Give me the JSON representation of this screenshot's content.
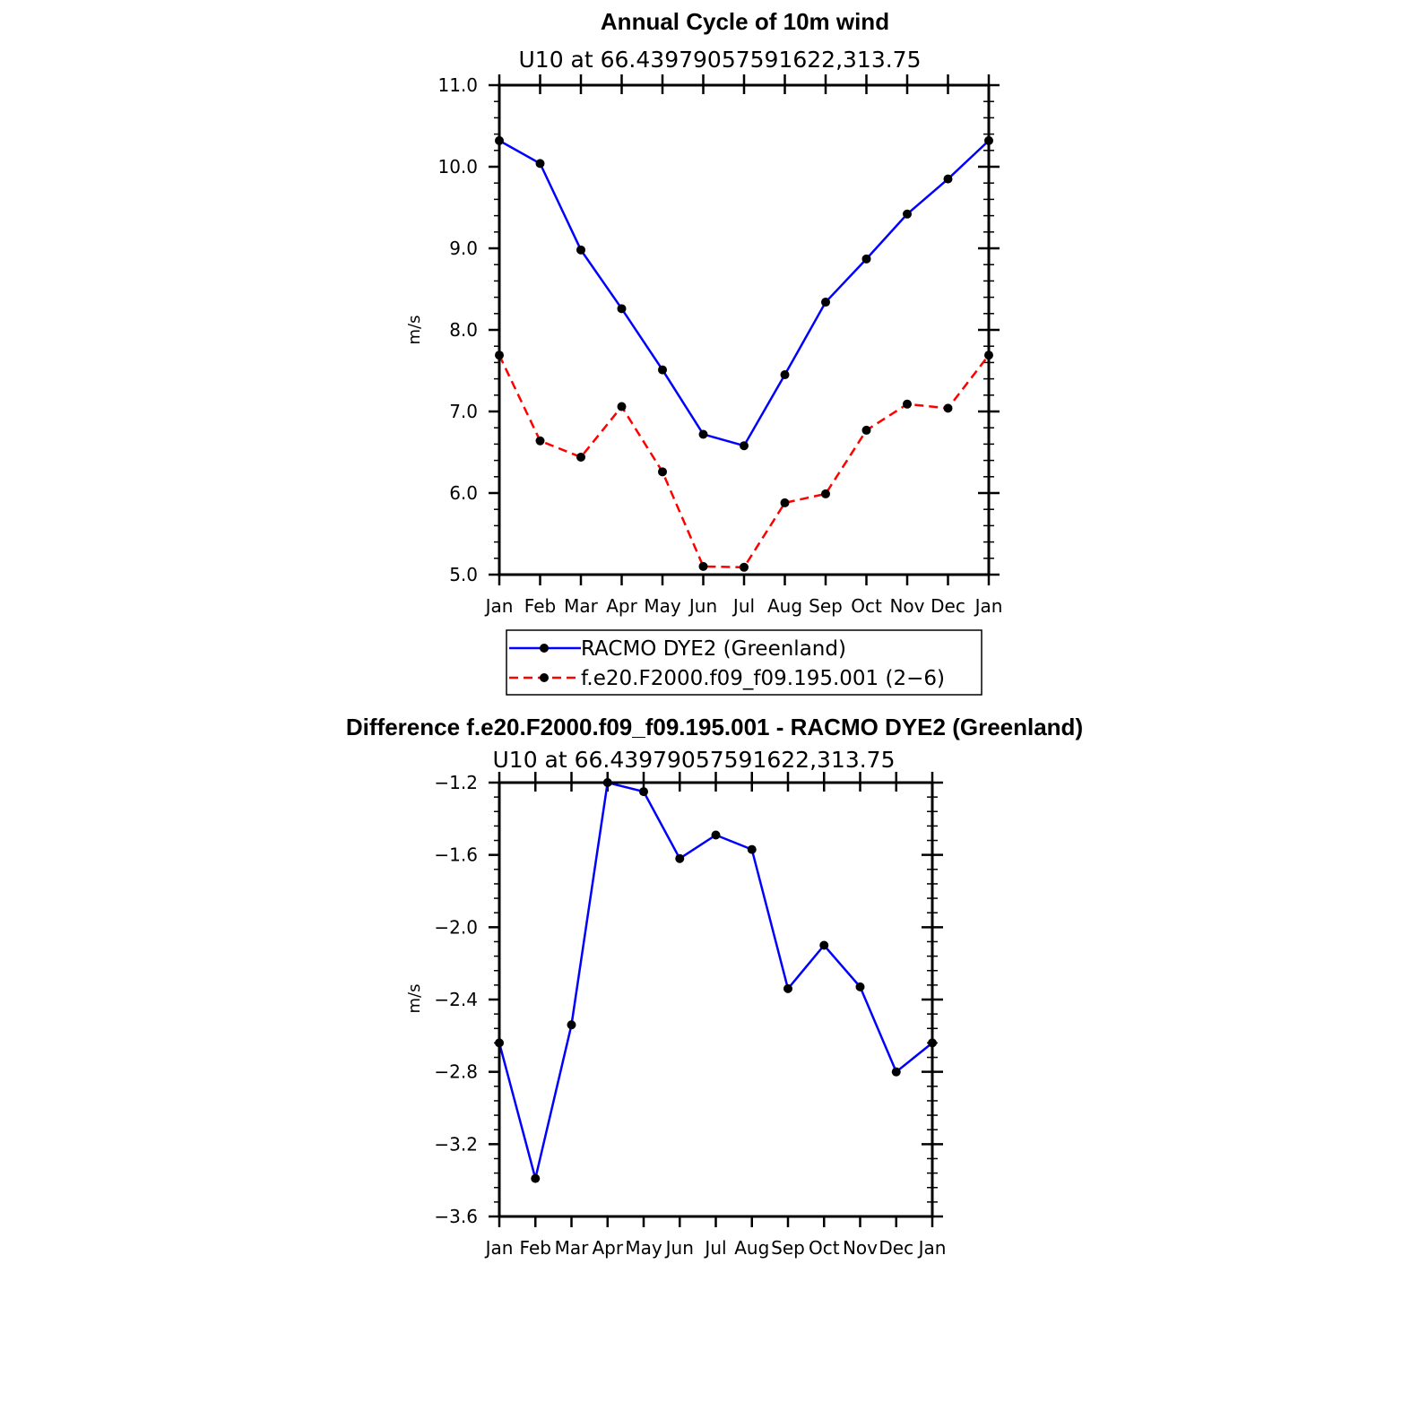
{
  "months": [
    "Jan",
    "Feb",
    "Mar",
    "Apr",
    "May",
    "Jun",
    "Jul",
    "Aug",
    "Sep",
    "Oct",
    "Nov",
    "Dec",
    "Jan"
  ],
  "chart_data": [
    {
      "type": "line",
      "title": "Annual Cycle of 10m wind",
      "subtitle": "U10  at  66.43979057591622,313.75",
      "xlabel": "",
      "ylabel": "m/s",
      "ylim": [
        5.0,
        11.0
      ],
      "yticks": [
        "5.0",
        "6.0",
        "7.0",
        "8.0",
        "9.0",
        "10.0",
        "11.0"
      ],
      "categories": [
        "Jan",
        "Feb",
        "Mar",
        "Apr",
        "May",
        "Jun",
        "Jul",
        "Aug",
        "Sep",
        "Oct",
        "Nov",
        "Dec",
        "Jan"
      ],
      "series": [
        {
          "name": "RACMO DYE2 (Greenland)",
          "color": "#0000ff",
          "dash": "solid",
          "values": [
            10.32,
            10.04,
            8.98,
            8.26,
            7.51,
            6.72,
            6.58,
            7.45,
            8.34,
            8.87,
            9.42,
            9.85,
            10.32
          ]
        },
        {
          "name": "f.e20.F2000.f09_f09.195.001 (2−6)",
          "color": "#ff0000",
          "dash": "dashed",
          "values": [
            7.69,
            6.64,
            6.44,
            7.06,
            6.26,
            5.1,
            5.09,
            5.88,
            5.99,
            6.77,
            7.09,
            7.04,
            7.69
          ]
        }
      ],
      "legend_position": "below"
    },
    {
      "type": "line",
      "title": "Difference f.e20.F2000.f09_f09.195.001 - RACMO DYE2 (Greenland)",
      "subtitle": "U10  at  66.43979057591622,313.75",
      "xlabel": "",
      "ylabel": "m/s",
      "ylim": [
        -3.6,
        -1.2
      ],
      "yticks": [
        "−3.6",
        "−3.2",
        "−2.8",
        "−2.4",
        "−2.0",
        "−1.6",
        "−1.2"
      ],
      "categories": [
        "Jan",
        "Feb",
        "Mar",
        "Apr",
        "May",
        "Jun",
        "Jul",
        "Aug",
        "Sep",
        "Oct",
        "Nov",
        "Dec",
        "Jan"
      ],
      "series": [
        {
          "name": "Difference",
          "color": "#0000ff",
          "dash": "solid",
          "values": [
            -2.64,
            -3.39,
            -2.54,
            -1.2,
            -1.25,
            -1.62,
            -1.49,
            -1.57,
            -2.34,
            -2.1,
            -2.33,
            -2.8,
            -2.64
          ]
        }
      ]
    }
  ]
}
